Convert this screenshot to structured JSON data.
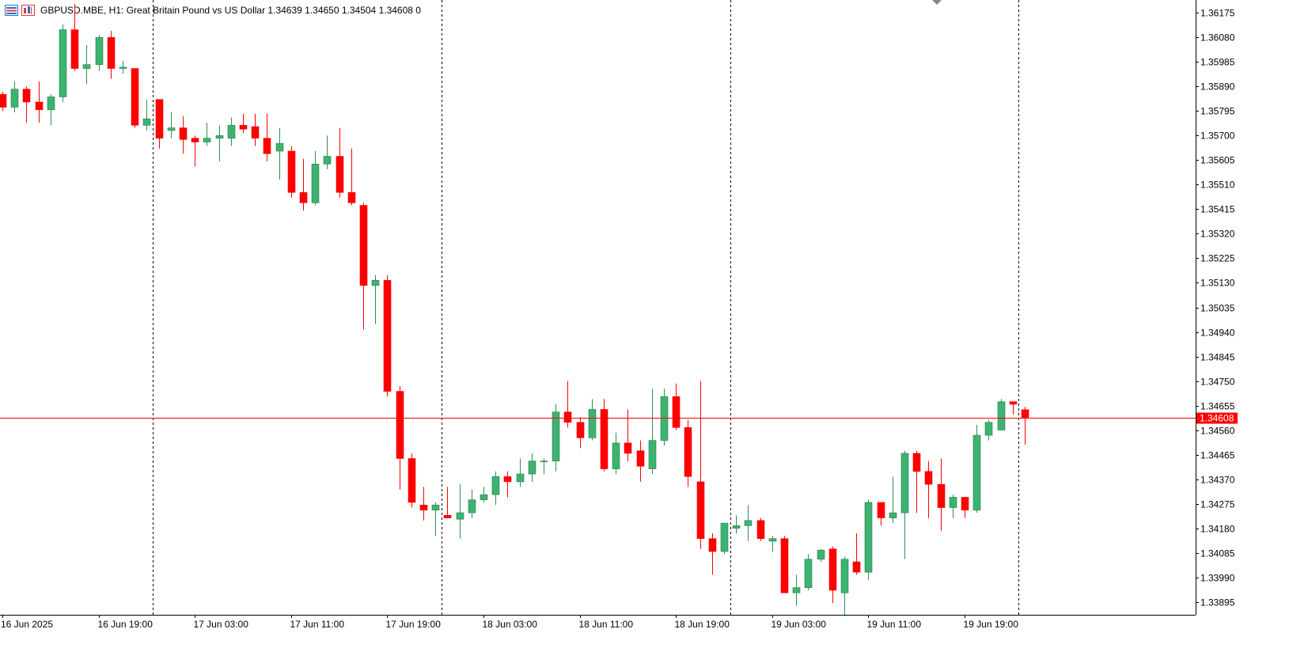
{
  "header": {
    "title": "GBPUSD.MBE, H1:  Great Britain Pound vs US Dollar  1.34639 1.34650 1.34504 1.34608  0"
  },
  "colors": {
    "bull": "#3cb371",
    "bear": "#ff0000",
    "price_line": "#ff0000",
    "axis": "#000000",
    "separator": "#000000"
  },
  "chart_data": {
    "type": "candlestick",
    "symbol": "GBPUSD.MBE",
    "timeframe": "H1",
    "y_range": [
      1.33845,
      1.36225
    ],
    "y_ticks": [
      1.36175,
      1.3608,
      1.35985,
      1.3589,
      1.35795,
      1.357,
      1.35605,
      1.3551,
      1.35415,
      1.3532,
      1.35225,
      1.3513,
      1.35035,
      1.3494,
      1.34845,
      1.3475,
      1.34655,
      1.3456,
      1.34465,
      1.3437,
      1.34275,
      1.3418,
      1.34085,
      1.3399,
      1.33895
    ],
    "y_tick_labels": [
      "1.36175",
      "1.36080",
      "1.35985",
      "1.35890",
      "1.35795",
      "1.35700",
      "1.35605",
      "1.35510",
      "1.35415",
      "1.35320",
      "1.35225",
      "1.35130",
      "1.35035",
      "1.34940",
      "1.34845",
      "1.34750",
      "1.34655",
      "1.34560",
      "1.34465",
      "1.34370",
      "1.34275",
      "1.34180",
      "1.34085",
      "1.33990",
      "1.33895"
    ],
    "x_labels": [
      {
        "label": "16 Jun 2025",
        "bar": 0
      },
      {
        "label": "16 Jun 19:00",
        "bar": 8
      },
      {
        "label": "17 Jun 03:00",
        "bar": 16
      },
      {
        "label": "17 Jun 11:00",
        "bar": 24
      },
      {
        "label": "17 Jun 19:00",
        "bar": 32
      },
      {
        "label": "18 Jun 03:00",
        "bar": 40
      },
      {
        "label": "18 Jun 11:00",
        "bar": 48
      },
      {
        "label": "18 Jun 19:00",
        "bar": 56
      },
      {
        "label": "19 Jun 03:00",
        "bar": 64
      },
      {
        "label": "19 Jun 11:00",
        "bar": 72
      },
      {
        "label": "19 Jun 19:00",
        "bar": 80
      }
    ],
    "day_separators_after_bar": [
      12.5,
      36.5,
      60.5,
      84.5
    ],
    "current_price": 1.34608,
    "current_price_label": "1.34608",
    "candles": [
      {
        "o": 1.3586,
        "h": 1.3587,
        "l": 1.35795,
        "c": 1.3581
      },
      {
        "o": 1.3581,
        "h": 1.3591,
        "l": 1.3579,
        "c": 1.3588
      },
      {
        "o": 1.3588,
        "h": 1.3589,
        "l": 1.3575,
        "c": 1.3583
      },
      {
        "o": 1.3583,
        "h": 1.3591,
        "l": 1.3575,
        "c": 1.358
      },
      {
        "o": 1.358,
        "h": 1.3586,
        "l": 1.3574,
        "c": 1.3585
      },
      {
        "o": 1.3585,
        "h": 1.3613,
        "l": 1.3583,
        "c": 1.3611
      },
      {
        "o": 1.3611,
        "h": 1.3621,
        "l": 1.3595,
        "c": 1.3596
      },
      {
        "o": 1.3596,
        "h": 1.3605,
        "l": 1.359,
        "c": 1.35975
      },
      {
        "o": 1.35975,
        "h": 1.3609,
        "l": 1.3595,
        "c": 1.3608
      },
      {
        "o": 1.3608,
        "h": 1.36105,
        "l": 1.3592,
        "c": 1.3596
      },
      {
        "o": 1.3596,
        "h": 1.3599,
        "l": 1.3594,
        "c": 1.35965
      },
      {
        "o": 1.3596,
        "h": 1.3596,
        "l": 1.3573,
        "c": 1.3574
      },
      {
        "o": 1.3574,
        "h": 1.3584,
        "l": 1.3572,
        "c": 1.35765
      },
      {
        "o": 1.3584,
        "h": 1.3584,
        "l": 1.3565,
        "c": 1.3569
      },
      {
        "o": 1.3572,
        "h": 1.3579,
        "l": 1.3569,
        "c": 1.3573
      },
      {
        "o": 1.3573,
        "h": 1.35775,
        "l": 1.3563,
        "c": 1.35685
      },
      {
        "o": 1.3569,
        "h": 1.357,
        "l": 1.3558,
        "c": 1.35675
      },
      {
        "o": 1.35675,
        "h": 1.3575,
        "l": 1.3566,
        "c": 1.3569
      },
      {
        "o": 1.3569,
        "h": 1.3574,
        "l": 1.356,
        "c": 1.357
      },
      {
        "o": 1.3569,
        "h": 1.3577,
        "l": 1.3566,
        "c": 1.3574
      },
      {
        "o": 1.3574,
        "h": 1.35785,
        "l": 1.3571,
        "c": 1.35725
      },
      {
        "o": 1.35735,
        "h": 1.35785,
        "l": 1.3566,
        "c": 1.3569
      },
      {
        "o": 1.3569,
        "h": 1.35785,
        "l": 1.356,
        "c": 1.3563
      },
      {
        "o": 1.3564,
        "h": 1.3573,
        "l": 1.3553,
        "c": 1.3567
      },
      {
        "o": 1.3564,
        "h": 1.3566,
        "l": 1.3546,
        "c": 1.3548
      },
      {
        "o": 1.3548,
        "h": 1.3561,
        "l": 1.3541,
        "c": 1.3544
      },
      {
        "o": 1.3544,
        "h": 1.3564,
        "l": 1.3543,
        "c": 1.3559
      },
      {
        "o": 1.3559,
        "h": 1.357,
        "l": 1.3557,
        "c": 1.3562
      },
      {
        "o": 1.3562,
        "h": 1.3573,
        "l": 1.3546,
        "c": 1.3548
      },
      {
        "o": 1.3548,
        "h": 1.3565,
        "l": 1.3543,
        "c": 1.3544
      },
      {
        "o": 1.3543,
        "h": 1.3544,
        "l": 1.3495,
        "c": 1.3512
      },
      {
        "o": 1.3512,
        "h": 1.3516,
        "l": 1.3497,
        "c": 1.3514
      },
      {
        "o": 1.3514,
        "h": 1.3516,
        "l": 1.3469,
        "c": 1.3471
      },
      {
        "o": 1.3471,
        "h": 1.3473,
        "l": 1.3433,
        "c": 1.3445
      },
      {
        "o": 1.3445,
        "h": 1.3447,
        "l": 1.3426,
        "c": 1.3428
      },
      {
        "o": 1.3427,
        "h": 1.3434,
        "l": 1.3421,
        "c": 1.3425
      },
      {
        "o": 1.3425,
        "h": 1.3428,
        "l": 1.3415,
        "c": 1.3427
      },
      {
        "o": 1.3423,
        "h": 1.3434,
        "l": 1.3422,
        "c": 1.3422
      },
      {
        "o": 1.34215,
        "h": 1.3435,
        "l": 1.3414,
        "c": 1.3424
      },
      {
        "o": 1.3424,
        "h": 1.3433,
        "l": 1.3422,
        "c": 1.3429
      },
      {
        "o": 1.3429,
        "h": 1.3434,
        "l": 1.3428,
        "c": 1.3431
      },
      {
        "o": 1.3431,
        "h": 1.344,
        "l": 1.3427,
        "c": 1.3438
      },
      {
        "o": 1.3438,
        "h": 1.344,
        "l": 1.343,
        "c": 1.3436
      },
      {
        "o": 1.3436,
        "h": 1.3445,
        "l": 1.3434,
        "c": 1.3439
      },
      {
        "o": 1.3439,
        "h": 1.3447,
        "l": 1.3436,
        "c": 1.3444
      },
      {
        "o": 1.3444,
        "h": 1.3445,
        "l": 1.3439,
        "c": 1.3444
      },
      {
        "o": 1.3444,
        "h": 1.3466,
        "l": 1.344,
        "c": 1.3463
      },
      {
        "o": 1.3463,
        "h": 1.3475,
        "l": 1.3457,
        "c": 1.3459
      },
      {
        "o": 1.3459,
        "h": 1.3461,
        "l": 1.3449,
        "c": 1.3453
      },
      {
        "o": 1.3453,
        "h": 1.3468,
        "l": 1.3452,
        "c": 1.3464
      },
      {
        "o": 1.3464,
        "h": 1.3468,
        "l": 1.344,
        "c": 1.3441
      },
      {
        "o": 1.3441,
        "h": 1.3455,
        "l": 1.3439,
        "c": 1.3451
      },
      {
        "o": 1.3451,
        "h": 1.3464,
        "l": 1.3444,
        "c": 1.3447
      },
      {
        "o": 1.3448,
        "h": 1.3452,
        "l": 1.3436,
        "c": 1.3442
      },
      {
        "o": 1.3441,
        "h": 1.3472,
        "l": 1.3439,
        "c": 1.3452
      },
      {
        "o": 1.3452,
        "h": 1.3472,
        "l": 1.345,
        "c": 1.3469
      },
      {
        "o": 1.3469,
        "h": 1.3474,
        "l": 1.3456,
        "c": 1.3457
      },
      {
        "o": 1.3457,
        "h": 1.346,
        "l": 1.3434,
        "c": 1.3438
      },
      {
        "o": 1.3436,
        "h": 1.3475,
        "l": 1.341,
        "c": 1.3414
      },
      {
        "o": 1.3414,
        "h": 1.3416,
        "l": 1.34,
        "c": 1.3409
      },
      {
        "o": 1.3409,
        "h": 1.342,
        "l": 1.3408,
        "c": 1.342
      },
      {
        "o": 1.3418,
        "h": 1.3423,
        "l": 1.3416,
        "c": 1.3419
      },
      {
        "o": 1.3419,
        "h": 1.3427,
        "l": 1.3413,
        "c": 1.3421
      },
      {
        "o": 1.3421,
        "h": 1.3422,
        "l": 1.3413,
        "c": 1.3414
      },
      {
        "o": 1.3413,
        "h": 1.3415,
        "l": 1.3409,
        "c": 1.3414
      },
      {
        "o": 1.3414,
        "h": 1.3415,
        "l": 1.3393,
        "c": 1.3393
      },
      {
        "o": 1.3393,
        "h": 1.34,
        "l": 1.3388,
        "c": 1.3395
      },
      {
        "o": 1.3395,
        "h": 1.3408,
        "l": 1.3394,
        "c": 1.3406
      },
      {
        "o": 1.3406,
        "h": 1.341,
        "l": 1.3405,
        "c": 1.34095
      },
      {
        "o": 1.341,
        "h": 1.3411,
        "l": 1.3389,
        "c": 1.3394
      },
      {
        "o": 1.3393,
        "h": 1.3407,
        "l": 1.3384,
        "c": 1.3406
      },
      {
        "o": 1.3405,
        "h": 1.3416,
        "l": 1.34,
        "c": 1.3401
      },
      {
        "o": 1.3401,
        "h": 1.3429,
        "l": 1.3398,
        "c": 1.3428
      },
      {
        "o": 1.3428,
        "h": 1.3428,
        "l": 1.3419,
        "c": 1.3422
      },
      {
        "o": 1.3422,
        "h": 1.3438,
        "l": 1.342,
        "c": 1.3424
      },
      {
        "o": 1.3424,
        "h": 1.3448,
        "l": 1.3406,
        "c": 1.3447
      },
      {
        "o": 1.3447,
        "h": 1.3448,
        "l": 1.3424,
        "c": 1.344
      },
      {
        "o": 1.344,
        "h": 1.3444,
        "l": 1.3422,
        "c": 1.3435
      },
      {
        "o": 1.3435,
        "h": 1.3445,
        "l": 1.3417,
        "c": 1.3426
      },
      {
        "o": 1.3426,
        "h": 1.3431,
        "l": 1.3422,
        "c": 1.343
      },
      {
        "o": 1.343,
        "h": 1.343,
        "l": 1.3422,
        "c": 1.3425
      },
      {
        "o": 1.3425,
        "h": 1.3458,
        "l": 1.3424,
        "c": 1.3454
      },
      {
        "o": 1.3454,
        "h": 1.346,
        "l": 1.3452,
        "c": 1.3459
      },
      {
        "o": 1.3456,
        "h": 1.3468,
        "l": 1.3456,
        "c": 1.3467
      },
      {
        "o": 1.3467,
        "h": 1.3467,
        "l": 1.3462,
        "c": 1.3466
      },
      {
        "o": 1.34639,
        "h": 1.3465,
        "l": 1.34504,
        "c": 1.34608
      }
    ]
  }
}
